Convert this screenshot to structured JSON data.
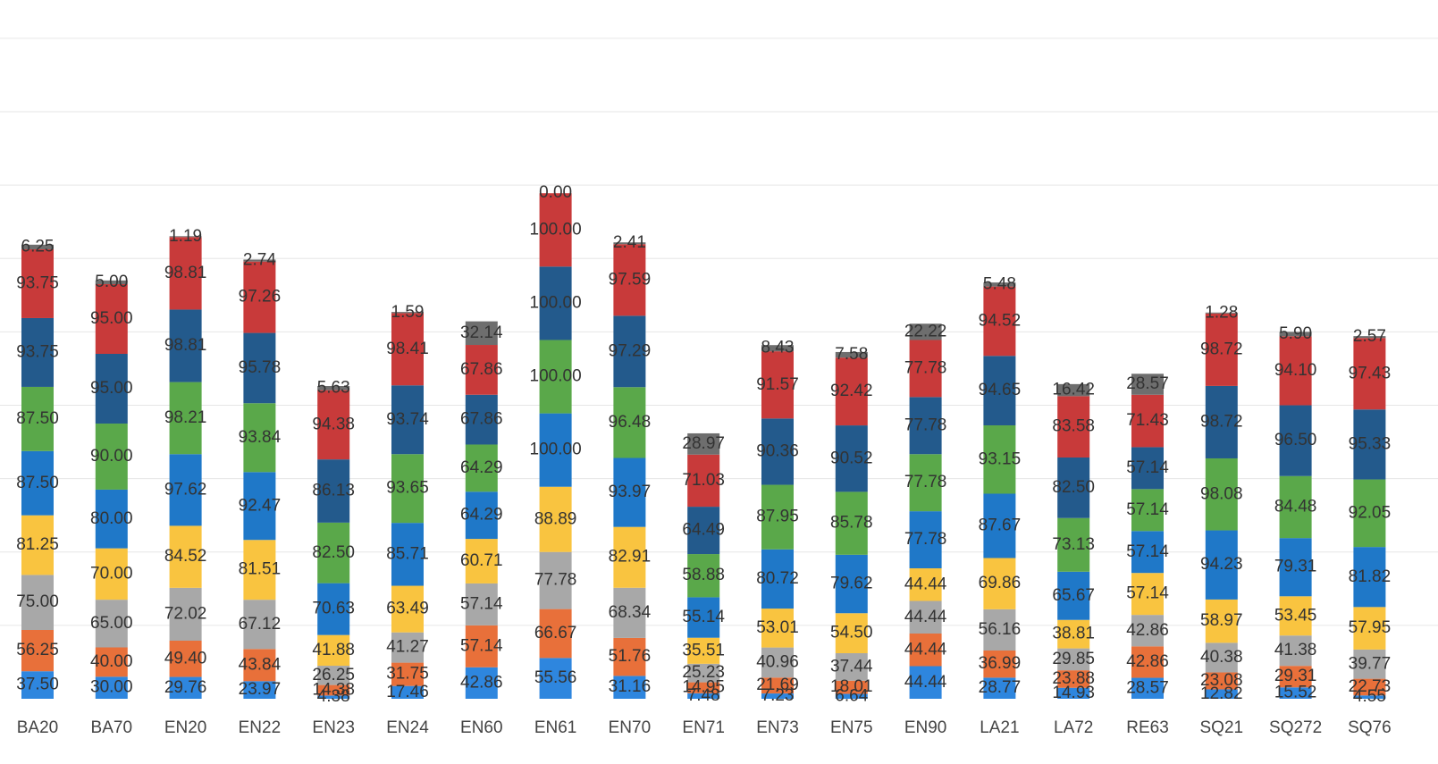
{
  "chart_data": {
    "type": "bar",
    "stacked": true,
    "grid": true,
    "legend": "none",
    "ylim": [
      0,
      940
    ],
    "categories": [
      "BA20",
      "BA70",
      "EN20",
      "EN22",
      "EN23",
      "EN24",
      "EN60",
      "EN61",
      "EN70",
      "EN71",
      "EN73",
      "EN75",
      "EN90",
      "LA21",
      "LA72",
      "RE63",
      "SQ21",
      "SQ272",
      "SQ76"
    ],
    "series": [
      {
        "color": "#2E86DE",
        "values": [
          37.5,
          30.0,
          29.76,
          23.97,
          4.38,
          17.46,
          42.86,
          55.56,
          31.16,
          7.48,
          7.23,
          6.64,
          44.44,
          28.77,
          14.93,
          28.57,
          12.82,
          15.52,
          4.55
        ],
        "labels": [
          "37.50",
          "30.00",
          "29.76",
          "23.97",
          "4.38",
          "17.46",
          "42.86",
          "55.56",
          "31.16",
          "7.48",
          "7.23",
          "6.64",
          "44.44",
          "28.77",
          "14.93",
          "28.57",
          "12.82",
          "15.52",
          "4.55"
        ]
      },
      {
        "color": "#E8703A",
        "values": [
          56.25,
          40.0,
          49.4,
          43.84,
          14.38,
          31.75,
          57.14,
          66.67,
          51.76,
          14.95,
          21.69,
          18.01,
          44.44,
          36.99,
          23.88,
          42.86,
          23.08,
          29.31,
          22.73
        ],
        "labels": [
          "56.25",
          "40.00",
          "49.40",
          "43.84",
          "14.38",
          "31.75",
          "57.14",
          "66.67",
          "51.76",
          "14.95",
          "21.69",
          "18.01",
          "44.44",
          "36.99",
          "23.88",
          "42.86",
          "23.08",
          "29.31",
          "22.73"
        ]
      },
      {
        "color": "#A8A8A8",
        "values": [
          75.0,
          65.0,
          72.02,
          67.12,
          26.25,
          41.27,
          57.14,
          77.78,
          68.34,
          25.23,
          40.96,
          37.44,
          44.44,
          56.16,
          29.85,
          42.86,
          40.38,
          41.38,
          39.77
        ],
        "labels": [
          "75.00",
          "65.00",
          "72.02",
          "67.12",
          "26.25",
          "41.27",
          "57.14",
          "77.78",
          "68.34",
          "25.23",
          "40.96",
          "37.44",
          "44.44",
          "56.16",
          "29.85",
          "42.86",
          "40.38",
          "41.38",
          "39.77"
        ]
      },
      {
        "color": "#F9C440",
        "values": [
          81.25,
          70.0,
          84.52,
          81.51,
          41.88,
          63.49,
          60.71,
          88.89,
          82.91,
          35.51,
          53.01,
          54.5,
          44.44,
          69.86,
          38.81,
          57.14,
          58.97,
          53.45,
          57.95
        ],
        "labels": [
          "81.25",
          "70.00",
          "84.52",
          "81.51",
          "41.88",
          "63.49",
          "60.71",
          "88.89",
          "82.91",
          "35.51",
          "53.01",
          "54.50",
          "44.44",
          "69.86",
          "38.81",
          "57.14",
          "58.97",
          "53.45",
          "57.95"
        ]
      },
      {
        "color": "#1F78C8",
        "values": [
          87.5,
          80.0,
          97.62,
          92.47,
          70.63,
          85.71,
          64.29,
          100.0,
          93.97,
          55.14,
          80.72,
          79.62,
          77.78,
          87.67,
          65.67,
          57.14,
          94.23,
          79.31,
          81.82
        ],
        "labels": [
          "87.50",
          "80.00",
          "97.62",
          "92.47",
          "70.63",
          "85.71",
          "64.29",
          "100.00",
          "93.97",
          "55.14",
          "80.72",
          "79.62",
          "77.78",
          "87.67",
          "65.67",
          "57.14",
          "94.23",
          "79.31",
          "81.82"
        ]
      },
      {
        "color": "#5AA84A",
        "values": [
          87.5,
          90.0,
          98.21,
          93.84,
          82.5,
          93.65,
          64.29,
          100.0,
          96.48,
          58.88,
          87.95,
          85.78,
          77.78,
          93.15,
          73.13,
          57.14,
          98.08,
          84.48,
          92.05
        ],
        "labels": [
          "87.50",
          "90.00",
          "98.21",
          "93.84",
          "82.50",
          "93.65",
          "64.29",
          "100.00",
          "96.48",
          "58.88",
          "87.95",
          "85.78",
          "77.78",
          "93.15",
          "73.13",
          "57.14",
          "98.08",
          "84.48",
          "92.05"
        ]
      },
      {
        "color": "#235A8C",
        "values": [
          93.75,
          95.0,
          98.81,
          95.78,
          86.13,
          93.74,
          67.86,
          100.0,
          97.29,
          64.49,
          90.36,
          90.52,
          77.78,
          94.65,
          82.5,
          57.14,
          98.72,
          96.5,
          95.33
        ],
        "labels": [
          "93.75",
          "95.00",
          "98.81",
          "95.78",
          "86.13",
          "93.74",
          "67.86",
          "100.00",
          "97.29",
          "64.49",
          "90.36",
          "90.52",
          "77.78",
          "94.65",
          "82.50",
          "57.14",
          "98.72",
          "96.50",
          "95.33"
        ]
      },
      {
        "color": "#C83A3A",
        "values": [
          93.75,
          95.0,
          98.81,
          97.26,
          94.38,
          98.41,
          67.86,
          100.0,
          97.59,
          71.03,
          91.57,
          92.42,
          77.78,
          94.52,
          83.58,
          71.43,
          98.72,
          94.1,
          97.43
        ],
        "labels": [
          "93.75",
          "95.00",
          "98.81",
          "97.26",
          "94.38",
          "98.41",
          "67.86",
          "100.00",
          "97.59",
          "71.03",
          "91.57",
          "92.42",
          "77.78",
          "94.52",
          "83.58",
          "71.43",
          "98.72",
          "94.10",
          "97.43"
        ]
      },
      {
        "color": "#6E6E6E",
        "values": [
          6.25,
          5.0,
          1.19,
          2.74,
          5.63,
          1.59,
          32.14,
          0.0,
          2.41,
          28.97,
          8.43,
          7.58,
          22.22,
          5.48,
          16.42,
          28.57,
          1.28,
          5.9,
          2.57
        ],
        "labels": [
          "6.25",
          "5.00",
          "1.19",
          "2.74",
          "5.63",
          "1.59",
          "32.14",
          "0.00",
          "2.41",
          "28.97",
          "8.43",
          "7.58",
          "22.22",
          "5.48",
          "16.42",
          "28.57",
          "1.28",
          "5.90",
          "2.57"
        ]
      }
    ]
  }
}
